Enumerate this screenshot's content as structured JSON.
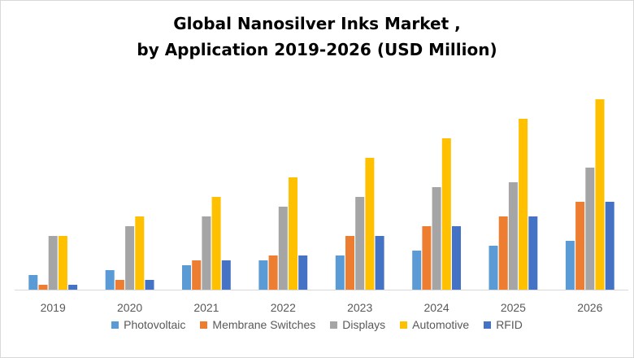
{
  "chart_data": {
    "type": "bar",
    "title": "Global Nanosilver Inks Market ,",
    "subtitle": "by Application 2019-2026 (USD Million)",
    "categories": [
      "2019",
      "2020",
      "2021",
      "2022",
      "2023",
      "2024",
      "2025",
      "2026"
    ],
    "series": [
      {
        "name": "Photovoltaic",
        "color": "#5b9bd5",
        "values": [
          3,
          4,
          5,
          6,
          7,
          8,
          9,
          10
        ]
      },
      {
        "name": "Membrane Switches",
        "color": "#ed7d31",
        "values": [
          1,
          2,
          6,
          7,
          11,
          13,
          15,
          18
        ]
      },
      {
        "name": "Displays",
        "color": "#a5a5a5",
        "values": [
          11,
          13,
          15,
          17,
          19,
          21,
          22,
          25
        ]
      },
      {
        "name": "Automotive",
        "color": "#ffc000",
        "values": [
          11,
          15,
          19,
          23,
          27,
          31,
          35,
          39
        ]
      },
      {
        "name": "RFID",
        "color": "#4472c4",
        "values": [
          1,
          2,
          6,
          7,
          11,
          13,
          15,
          18
        ]
      }
    ],
    "ylim": [
      0,
      40
    ],
    "xlabel": "",
    "ylabel": "",
    "grid": false,
    "legend_position": "bottom"
  }
}
